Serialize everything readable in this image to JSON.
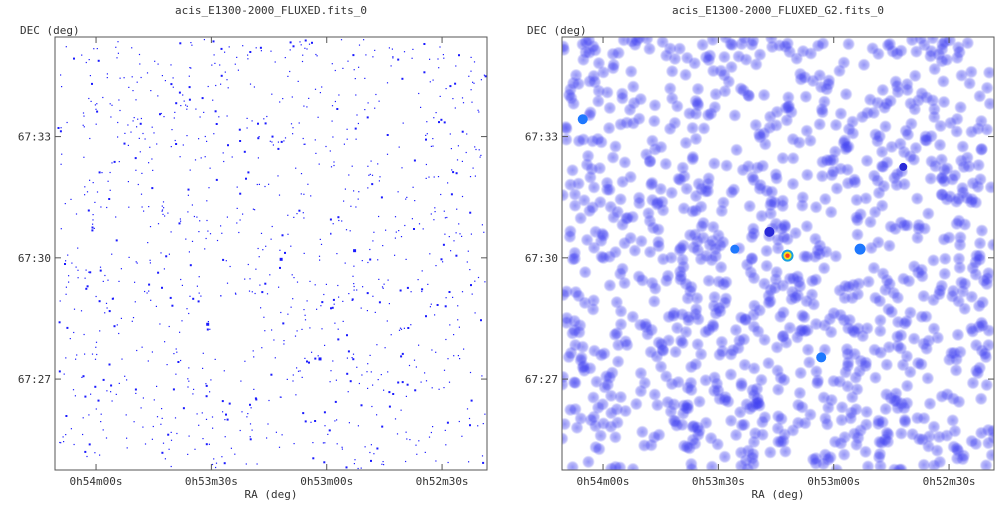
{
  "chart_data": [
    {
      "type": "scatter",
      "title": "acis_E1300-2000_FLUXED.fits_0",
      "xlabel": "RA (deg)",
      "ylabel": "DEC (deg)",
      "xticks": [
        "0h54m00s",
        "0h53m30s",
        "0h53m00s",
        "0h52m30s"
      ],
      "yticks": [
        "67:33",
        "67:30",
        "67:27"
      ],
      "style": "raw photon events",
      "colors": {
        "point": "#1a1aff"
      }
    },
    {
      "type": "heatmap",
      "title": "acis_E1300-2000_FLUXED_G2.fits_0",
      "xlabel": "RA (deg)",
      "ylabel": "DEC (deg)",
      "xticks": [
        "0h54m00s",
        "0h53m30s",
        "0h53m00s",
        "0h52m30s"
      ],
      "yticks": [
        "67:33",
        "67:30",
        "67:27"
      ],
      "style": "gaussian smoothed (sigma=2)",
      "colors": {
        "blob": "#3c3cf0",
        "bright": "#1e78ff",
        "core_hot": "#ff3c1e",
        "core_warm": "#f0e01e"
      }
    }
  ]
}
